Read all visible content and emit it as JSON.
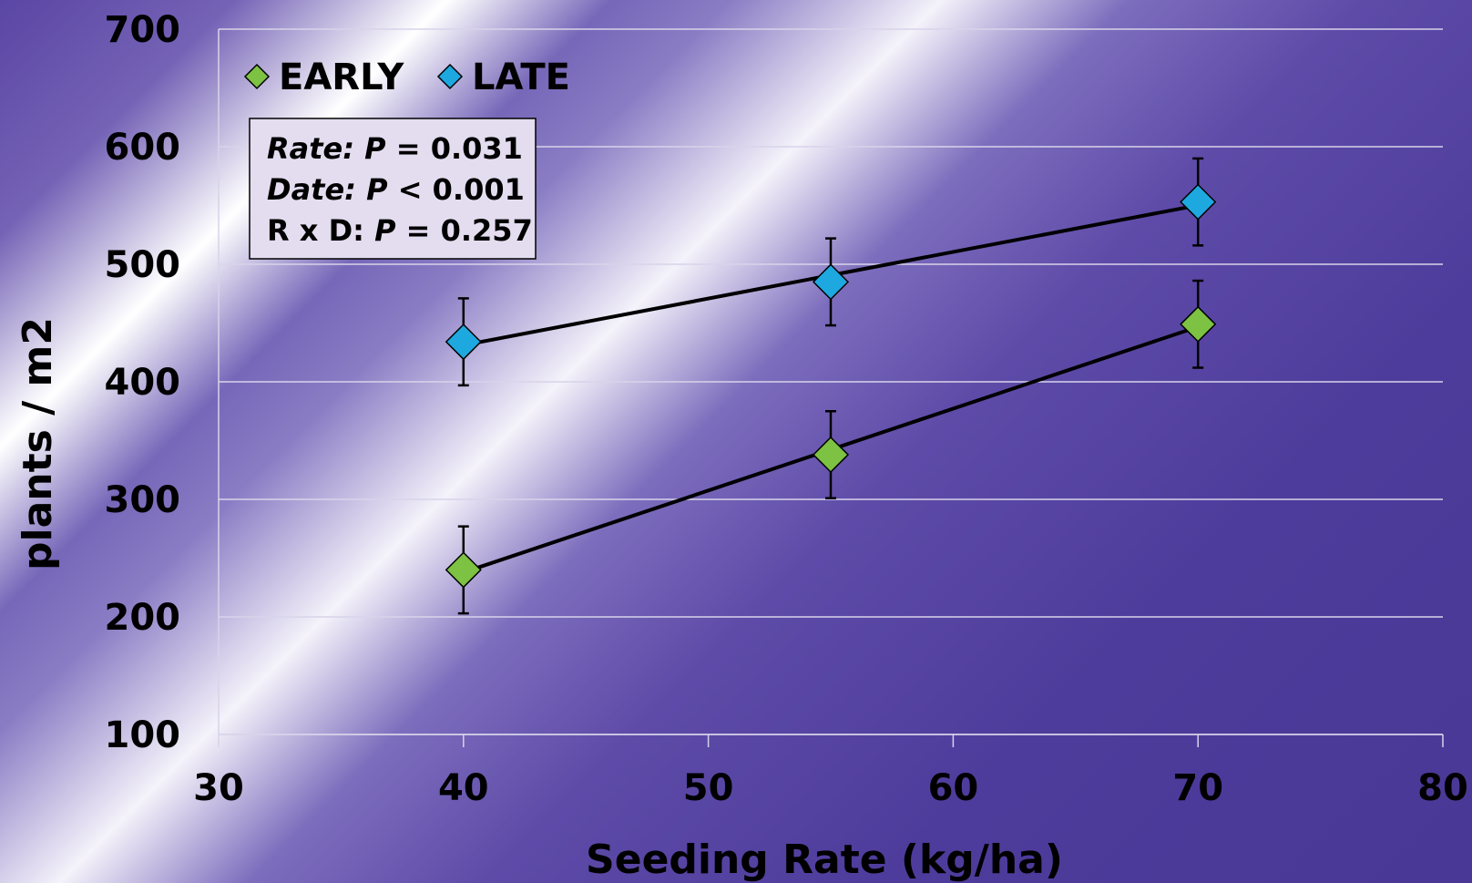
{
  "chart_data": {
    "type": "scatter",
    "xlabel": "Seeding Rate (kg/ha)",
    "ylabel": "plants / m2",
    "xlim": [
      30,
      80
    ],
    "ylim": [
      100,
      700
    ],
    "xticks": [
      30,
      40,
      50,
      60,
      70,
      80
    ],
    "yticks": [
      100,
      200,
      300,
      400,
      500,
      600,
      700
    ],
    "grid": "horizontal",
    "legend_position": "top-left",
    "series": [
      {
        "name": "EARLY",
        "color": "#7dc242",
        "x": [
          40,
          55,
          70
        ],
        "y": [
          240,
          338,
          449
        ],
        "error": [
          37,
          37,
          37
        ],
        "trendline": true
      },
      {
        "name": "LATE",
        "color": "#1ea8e0",
        "x": [
          40,
          55,
          70
        ],
        "y": [
          434,
          485,
          553
        ],
        "error": [
          37,
          37,
          37
        ],
        "trendline": true
      }
    ],
    "stats_box": [
      {
        "label": "Rate:",
        "p_label": "P",
        "value": "= 0.031"
      },
      {
        "label": "Date:",
        "p_label": "P",
        "value": "< 0.001"
      },
      {
        "label": "R x D:",
        "p_label": "P",
        "value": "= 0.257"
      }
    ]
  }
}
